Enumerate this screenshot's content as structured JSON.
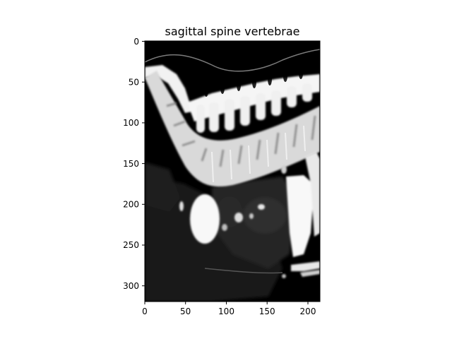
{
  "figure": {
    "title": "sagittal spine vertebrae",
    "x_ticks": [
      "0",
      "50",
      "100",
      "150",
      "200"
    ],
    "y_ticks": [
      "0",
      "50",
      "100",
      "150",
      "200",
      "250",
      "300"
    ]
  },
  "image": {
    "subject": "sagittal CT slice of the spine",
    "colormap": "grayscale",
    "background_color": "#000000",
    "bone_color": "#ffffff",
    "soft_tissue_color": "#3a3a3a",
    "frame_color": "#000000"
  }
}
